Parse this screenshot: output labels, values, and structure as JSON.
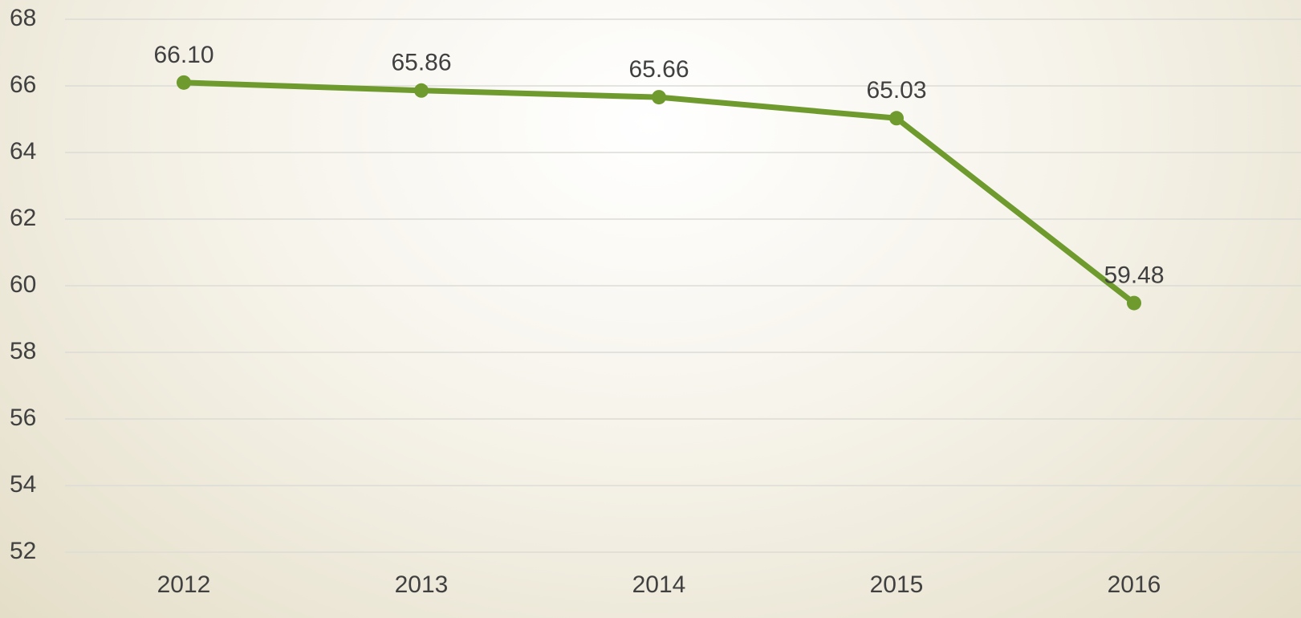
{
  "chart_data": {
    "type": "line",
    "categories": [
      "2012",
      "2013",
      "2014",
      "2015",
      "2016"
    ],
    "series": [
      {
        "name": null,
        "color": "#6e9a2e",
        "values": [
          66.1,
          65.86,
          65.66,
          65.03,
          59.48
        ],
        "value_labels": [
          "66.10",
          "65.86",
          "65.66",
          "65.03",
          "59.48"
        ]
      }
    ],
    "ylim": [
      52,
      68
    ],
    "yticks": [
      52,
      54,
      56,
      58,
      60,
      62,
      64,
      66,
      68
    ],
    "grid": true
  }
}
